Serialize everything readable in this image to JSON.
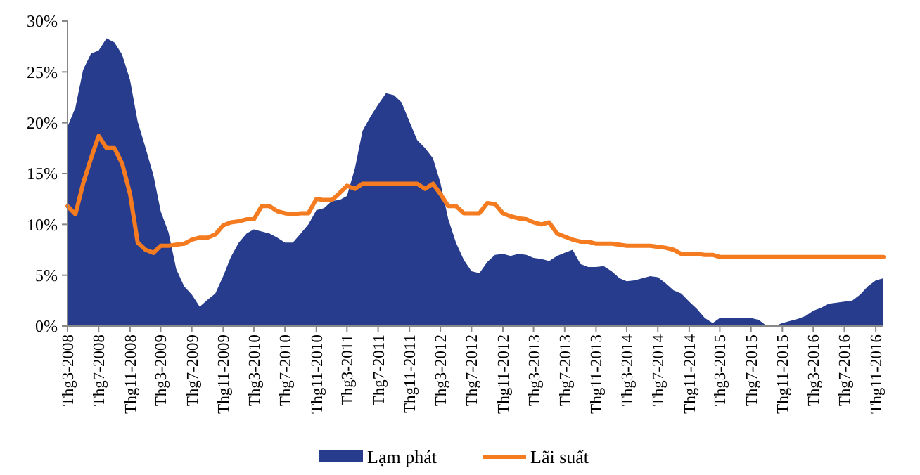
{
  "chart_data": {
    "type": "area",
    "x": [
      "2008-03",
      "2008-04",
      "2008-05",
      "2008-06",
      "2008-07",
      "2008-08",
      "2008-09",
      "2008-10",
      "2008-11",
      "2008-12",
      "2009-01",
      "2009-02",
      "2009-03",
      "2009-04",
      "2009-05",
      "2009-06",
      "2009-07",
      "2009-08",
      "2009-09",
      "2009-10",
      "2009-11",
      "2009-12",
      "2010-01",
      "2010-02",
      "2010-03",
      "2010-04",
      "2010-05",
      "2010-06",
      "2010-07",
      "2010-08",
      "2010-09",
      "2010-10",
      "2010-11",
      "2010-12",
      "2011-01",
      "2011-02",
      "2011-03",
      "2011-04",
      "2011-05",
      "2011-06",
      "2011-07",
      "2011-08",
      "2011-09",
      "2011-10",
      "2011-11",
      "2011-12",
      "2012-01",
      "2012-02",
      "2012-03",
      "2012-04",
      "2012-05",
      "2012-06",
      "2012-07",
      "2012-08",
      "2012-09",
      "2012-10",
      "2012-11",
      "2012-12",
      "2013-01",
      "2013-02",
      "2013-03",
      "2013-04",
      "2013-05",
      "2013-06",
      "2013-07",
      "2013-08",
      "2013-09",
      "2013-10",
      "2013-11",
      "2013-12",
      "2014-01",
      "2014-02",
      "2014-03",
      "2014-04",
      "2014-05",
      "2014-06",
      "2014-07",
      "2014-08",
      "2014-09",
      "2014-10",
      "2014-11",
      "2014-12",
      "2015-01",
      "2015-02",
      "2015-03",
      "2015-04",
      "2015-05",
      "2015-06",
      "2015-07",
      "2015-08",
      "2015-09",
      "2015-10",
      "2015-11",
      "2015-12",
      "2016-01",
      "2016-02",
      "2016-03",
      "2016-04",
      "2016-05",
      "2016-06",
      "2016-07",
      "2016-08",
      "2016-09",
      "2016-10",
      "2016-11",
      "2016-12"
    ],
    "series": [
      {
        "name": "Lạm phát",
        "color": "#283c8e",
        "values": [
          19.6,
          21.5,
          25.2,
          26.8,
          27.1,
          28.3,
          27.9,
          26.7,
          24.2,
          20.1,
          17.5,
          14.8,
          11.3,
          9.2,
          5.6,
          3.9,
          3.1,
          1.9,
          2.6,
          3.2,
          4.9,
          6.8,
          8.2,
          9.1,
          9.5,
          9.3,
          9.1,
          8.7,
          8.2,
          8.2,
          9.1,
          10.0,
          11.4,
          11.6,
          12.3,
          12.4,
          12.8,
          15.5,
          19.2,
          20.6,
          21.8,
          22.9,
          22.7,
          22.0,
          20.1,
          18.3,
          17.5,
          16.5,
          14.1,
          10.5,
          8.2,
          6.5,
          5.4,
          5.2,
          6.3,
          7.0,
          7.1,
          6.9,
          7.1,
          7.0,
          6.7,
          6.6,
          6.4,
          6.9,
          7.2,
          7.5,
          6.1,
          5.8,
          5.8,
          5.9,
          5.4,
          4.7,
          4.4,
          4.5,
          4.7,
          4.9,
          4.8,
          4.2,
          3.5,
          3.2,
          2.4,
          1.7,
          0.8,
          0.3,
          0.8,
          0.8,
          0.8,
          0.8,
          0.8,
          0.6,
          0,
          0,
          0.3,
          0.5,
          0.7,
          1.0,
          1.5,
          1.8,
          2.2,
          2.3,
          2.4,
          2.5,
          3.1,
          3.9,
          4.5,
          4.7
        ]
      },
      {
        "name": "Lãi suất",
        "type": "line",
        "color": "#f47b20",
        "values": [
          11.8,
          11.0,
          14.0,
          16.5,
          18.7,
          17.5,
          17.5,
          16.0,
          13.0,
          8.2,
          7.5,
          7.2,
          7.9,
          7.9,
          8.0,
          8.1,
          8.5,
          8.7,
          8.7,
          9.0,
          9.9,
          10.2,
          10.3,
          10.5,
          10.5,
          11.8,
          11.8,
          11.3,
          11.1,
          11.0,
          11.1,
          11.1,
          12.5,
          12.4,
          12.4,
          13.1,
          13.8,
          13.5,
          14.0,
          14.0,
          14.0,
          14.0,
          14.0,
          14.0,
          14.0,
          14.0,
          13.5,
          14.0,
          13.0,
          11.8,
          11.8,
          11.1,
          11.1,
          11.1,
          12.1,
          12.0,
          11.1,
          10.8,
          10.6,
          10.5,
          10.2,
          10.0,
          10.2,
          9.1,
          8.8,
          8.5,
          8.3,
          8.3,
          8.1,
          8.1,
          8.1,
          8.0,
          7.9,
          7.9,
          7.9,
          7.9,
          7.8,
          7.7,
          7.5,
          7.1,
          7.1,
          7.1,
          7.0,
          7.0,
          6.8,
          6.8,
          6.8,
          6.8,
          6.8,
          6.8,
          6.8,
          6.8,
          6.8,
          6.8,
          6.8,
          6.8,
          6.8,
          6.8,
          6.8,
          6.8,
          6.8,
          6.8,
          6.8,
          6.8,
          6.8,
          6.8
        ]
      }
    ],
    "xlim": [
      "2008-03",
      "2016-12"
    ],
    "xticks": [
      {
        "value": "2008-03",
        "label": "Thg3-2008"
      },
      {
        "value": "2008-07",
        "label": "Thg7-2008"
      },
      {
        "value": "2008-11",
        "label": "Thg11-2008"
      },
      {
        "value": "2009-03",
        "label": "Thg3-2009"
      },
      {
        "value": "2009-07",
        "label": "Thg7-2009"
      },
      {
        "value": "2009-11",
        "label": "Thg11-2009"
      },
      {
        "value": "2010-03",
        "label": "Thg3-2010"
      },
      {
        "value": "2010-07",
        "label": "Thg7-2010"
      },
      {
        "value": "2010-11",
        "label": "Thg11-2010"
      },
      {
        "value": "2011-03",
        "label": "Thg3-2011"
      },
      {
        "value": "2011-07",
        "label": "Thg7-2011"
      },
      {
        "value": "2011-11",
        "label": "Thg11-2011"
      },
      {
        "value": "2012-03",
        "label": "Thg3-2012"
      },
      {
        "value": "2012-07",
        "label": "Thg7-2012"
      },
      {
        "value": "2012-11",
        "label": "Thg11-2012"
      },
      {
        "value": "2013-03",
        "label": "Thg3-2013"
      },
      {
        "value": "2013-07",
        "label": "Thg7-2013"
      },
      {
        "value": "2013-11",
        "label": "Thg11-2013"
      },
      {
        "value": "2014-03",
        "label": "Thg3-2014"
      },
      {
        "value": "2014-07",
        "label": "Thg7-2014"
      },
      {
        "value": "2014-11",
        "label": "Thg11-2014"
      },
      {
        "value": "2015-03",
        "label": "Thg3-2015"
      },
      {
        "value": "2015-07",
        "label": "Thg7-2015"
      },
      {
        "value": "2015-11",
        "label": "Thg11-2015"
      },
      {
        "value": "2016-03",
        "label": "Thg3-2016"
      },
      {
        "value": "2016-07",
        "label": "Thg7-2016"
      },
      {
        "value": "2016-11",
        "label": "Thg11-2016"
      }
    ],
    "ylim": [
      0,
      30
    ],
    "yticks": [
      {
        "value": 0,
        "label": "0%"
      },
      {
        "value": 5,
        "label": "5%"
      },
      {
        "value": 10,
        "label": "10%"
      },
      {
        "value": 15,
        "label": "15%"
      },
      {
        "value": 20,
        "label": "20%"
      },
      {
        "value": 25,
        "label": "25%"
      },
      {
        "value": 30,
        "label": "30%"
      }
    ],
    "grid": false,
    "legend": "bottom"
  }
}
